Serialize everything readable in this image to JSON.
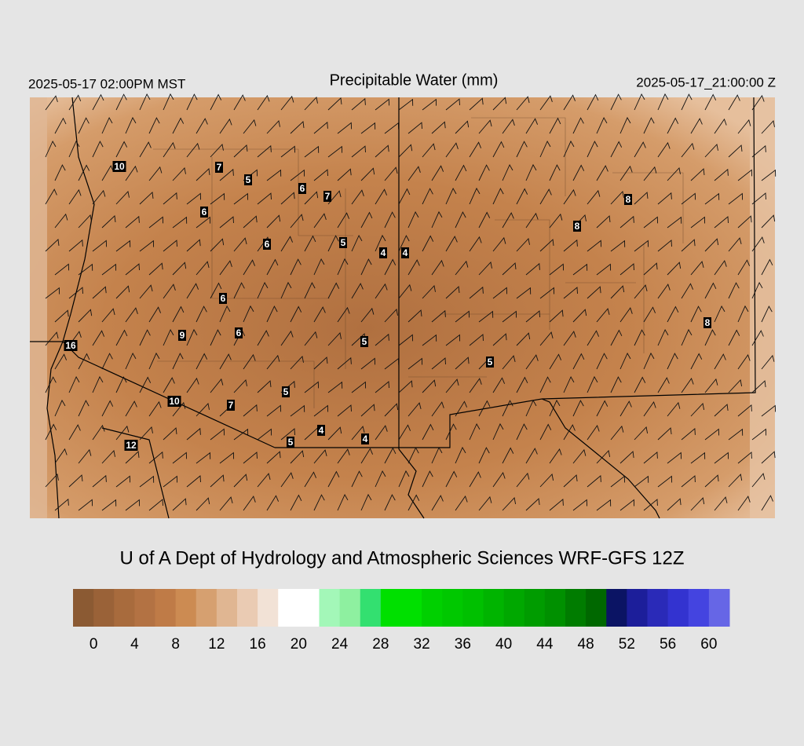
{
  "header": {
    "left": "2025-05-17 02:00PM MST",
    "title": "Precipitable Water (mm)",
    "right": "2025-05-17_21:00:00 Z"
  },
  "map": {
    "station_values": [
      10,
      7,
      5,
      6,
      7,
      6,
      6,
      5,
      4,
      4,
      8,
      8,
      6,
      6,
      9,
      5,
      16,
      5,
      8,
      5,
      10,
      7,
      4,
      4,
      5,
      12
    ]
  },
  "credit": "U of A Dept of Hydrology and Atmospheric Sciences WRF-GFS 12Z",
  "colorbar": {
    "lim": [
      -2,
      62
    ],
    "colors": [
      "#8b5a33",
      "#9a6238",
      "#a86b3d",
      "#b37243",
      "#bf7b47",
      "#cc8b52",
      "#d6a070",
      "#e0b692",
      "#eacbb3",
      "#f2e2d6",
      "#ffffff",
      "#ffffff",
      "#a3f7b8",
      "#8ef0a0",
      "#33e070",
      "#00e000",
      "#00e000",
      "#00d000",
      "#00c800",
      "#00c000",
      "#00b400",
      "#00a800",
      "#009c00",
      "#009000",
      "#007c00",
      "#006800",
      "#0b1464",
      "#1c1e9a",
      "#2a2ab8",
      "#3333d0",
      "#4444e0",
      "#6666e6"
    ],
    "ticks": [
      0,
      4,
      8,
      12,
      16,
      20,
      24,
      28,
      32,
      36,
      40,
      44,
      48,
      52,
      56,
      60
    ]
  }
}
